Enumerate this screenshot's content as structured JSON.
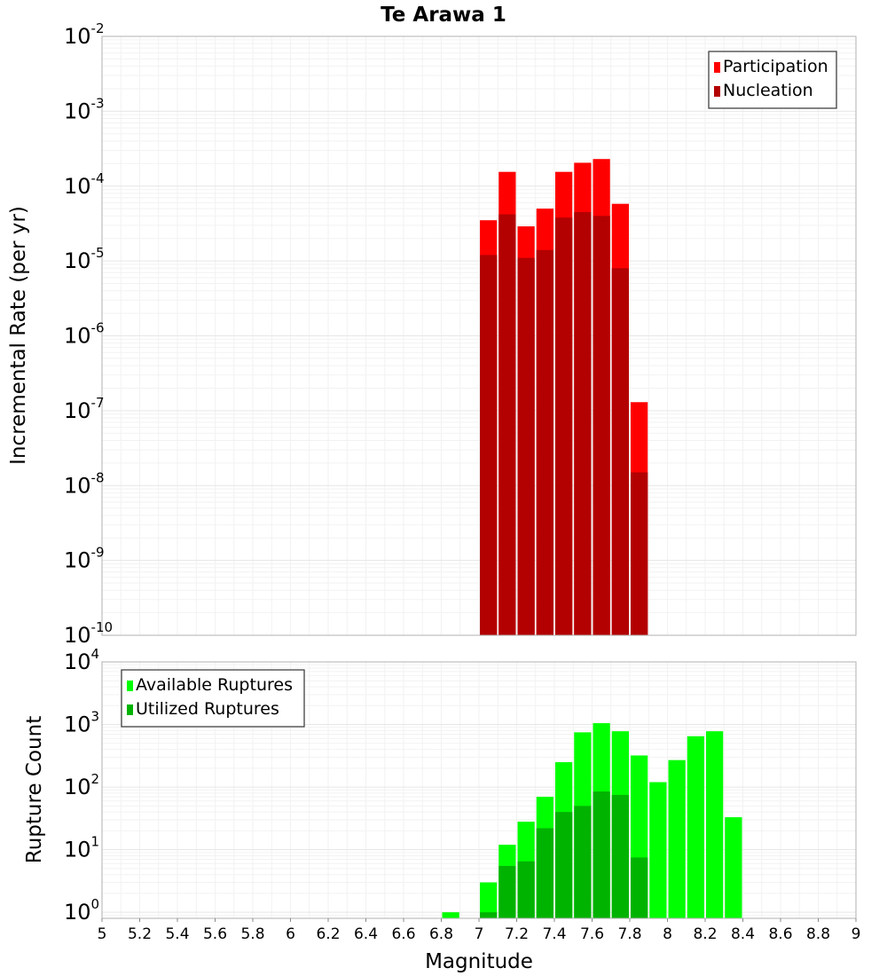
{
  "chart_data": [
    {
      "type": "bar",
      "title": "Te Arawa 1",
      "xlabel": "",
      "ylabel": "Incremental Rate (per yr)",
      "yscale": "log",
      "ylim": [
        1e-10,
        0.01
      ],
      "xlim": [
        5,
        9
      ],
      "grid": true,
      "legend_position": "top-right",
      "series": [
        {
          "name": "Participation",
          "color": "#ff0000",
          "x": [
            7.05,
            7.15,
            7.25,
            7.35,
            7.45,
            7.55,
            7.65,
            7.75,
            7.85
          ],
          "values": [
            3.5e-05,
            0.000155,
            2.9e-05,
            5e-05,
            0.000155,
            0.000205,
            0.00023,
            5.8e-05,
            1.3e-07
          ]
        },
        {
          "name": "Nucleation",
          "color": "#b30000",
          "x": [
            7.05,
            7.15,
            7.25,
            7.35,
            7.45,
            7.55,
            7.65,
            7.75,
            7.85
          ],
          "values": [
            1.2e-05,
            4.2e-05,
            1.1e-05,
            1.4e-05,
            3.8e-05,
            4.5e-05,
            4e-05,
            8e-06,
            1.5e-08
          ]
        }
      ]
    },
    {
      "type": "bar",
      "title": "",
      "xlabel": "Magnitude",
      "ylabel": "Rupture Count",
      "yscale": "log",
      "ylim": [
        0.8,
        10000
      ],
      "xlim": [
        5,
        9
      ],
      "grid": true,
      "legend_position": "top-left",
      "x_ticks": [
        "5",
        "5.2",
        "5.4",
        "5.6",
        "5.8",
        "6",
        "6.2",
        "6.4",
        "6.6",
        "6.8",
        "7",
        "7.2",
        "7.4",
        "7.6",
        "7.8",
        "8",
        "8.2",
        "8.4",
        "8.6",
        "8.8",
        "9"
      ],
      "series": [
        {
          "name": "Available Ruptures",
          "color": "#00ff00",
          "x": [
            6.85,
            7.05,
            7.15,
            7.25,
            7.35,
            7.45,
            7.55,
            7.65,
            7.75,
            7.85,
            7.95,
            8.05,
            8.15,
            8.25,
            8.35
          ],
          "values": [
            1,
            3,
            12,
            28,
            70,
            250,
            750,
            1050,
            780,
            320,
            120,
            270,
            650,
            780,
            33
          ]
        },
        {
          "name": "Utilized Ruptures",
          "color": "#00b300",
          "x": [
            7.05,
            7.15,
            7.25,
            7.35,
            7.45,
            7.55,
            7.65,
            7.75,
            7.85
          ],
          "values": [
            1,
            5.5,
            6.5,
            22,
            40,
            50,
            85,
            75,
            7.5
          ]
        }
      ]
    }
  ]
}
